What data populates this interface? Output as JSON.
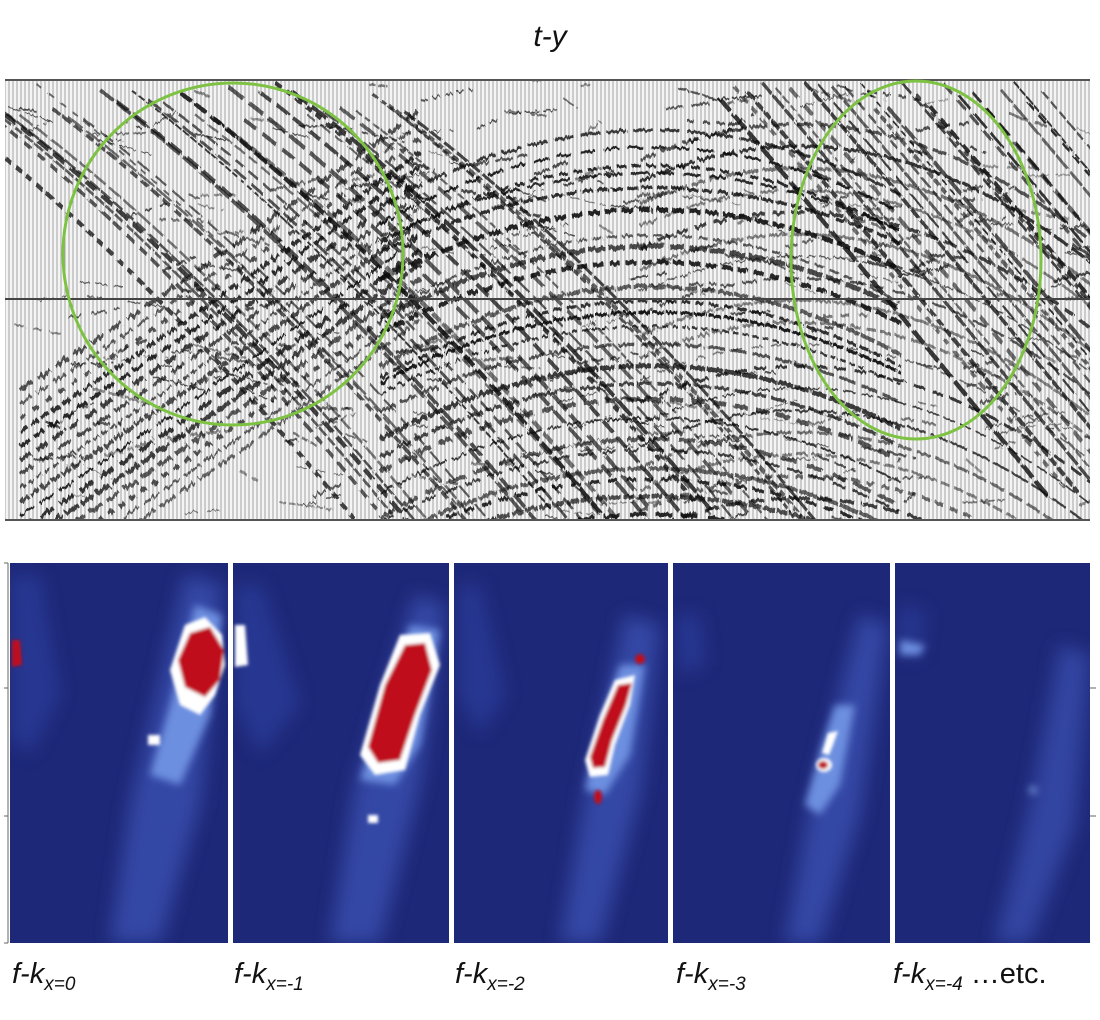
{
  "section_title": "t-y",
  "colors": {
    "highlight_ellipse": "#7dc242",
    "spectrum_background": "#1e2878",
    "spectrum_medium": "#5a7cd6",
    "spectrum_hot": "#a50f15"
  },
  "panels": [
    {
      "prefix": "f-k",
      "subscript": "x=0",
      "suffix": ""
    },
    {
      "prefix": "f-k",
      "subscript": "x=-1",
      "suffix": ""
    },
    {
      "prefix": "f-k",
      "subscript": "x=-2",
      "suffix": ""
    },
    {
      "prefix": "f-k",
      "subscript": "x=-3",
      "suffix": ""
    },
    {
      "prefix": "f-k",
      "subscript": "x=-4",
      "suffix": " …etc."
    }
  ]
}
